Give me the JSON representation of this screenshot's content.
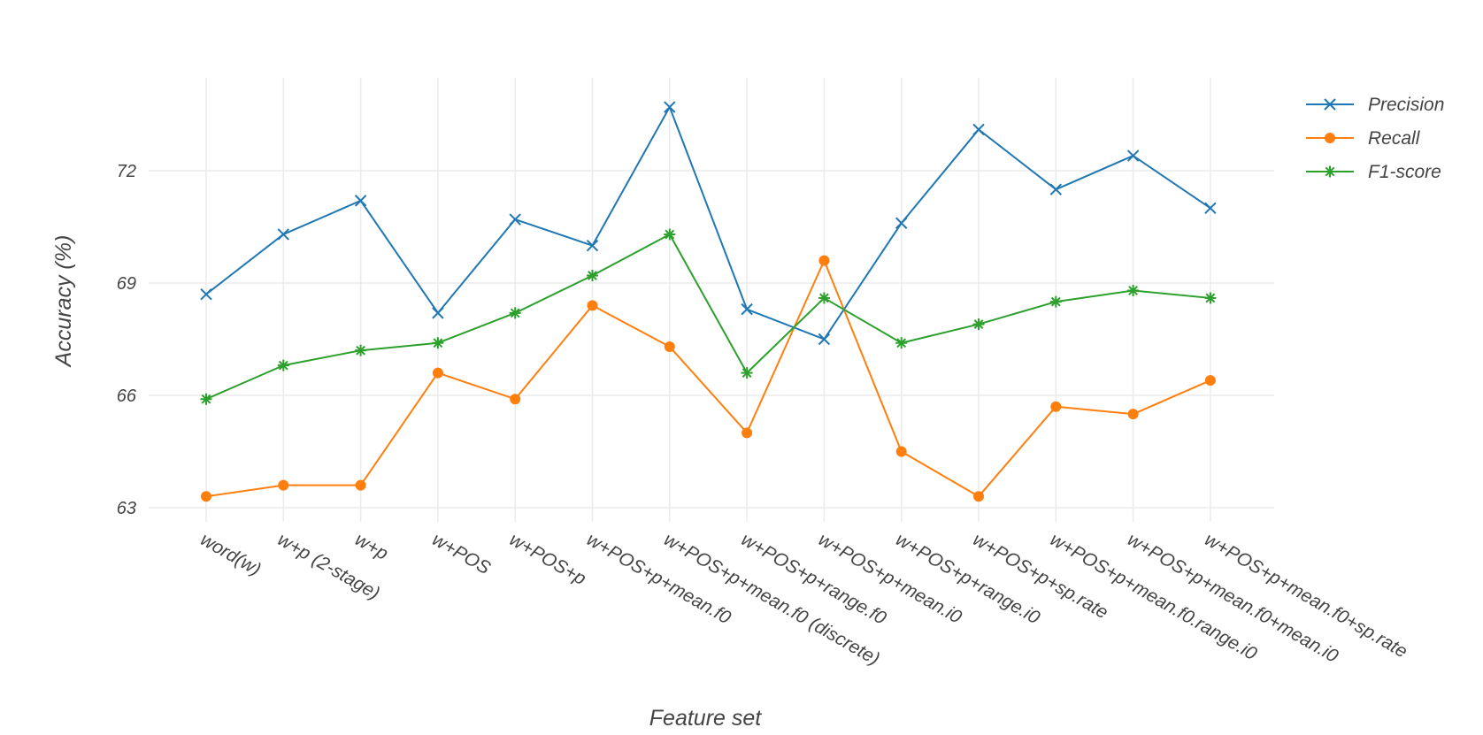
{
  "chart_data": {
    "type": "line",
    "xlabel": "Feature set",
    "ylabel": "Accuracy (%)",
    "ylim": [
      62.5,
      74.5
    ],
    "yticks": [
      63,
      66,
      69,
      72
    ],
    "grid": true,
    "legend_position": "top-right",
    "categories": [
      "word(w)",
      "w+p (2-stage)",
      "w+p",
      "w+POS",
      "w+POS+p",
      "w+POS+p+mean.f0",
      "w+POS+p+mean.f0 (discrete)",
      "w+POS+p+range.f0",
      "w+POS+p+mean.i0",
      "w+POS+p+range.i0",
      "w+POS+p+sp.rate",
      "w+POS+p+mean.f0.range.i0",
      "w+POS+p+mean.f0+mean.i0",
      "w+POS+p+mean.f0+sp.rate"
    ],
    "series": [
      {
        "name": "Precision",
        "color": "#1f77b4",
        "marker": "x",
        "values": [
          68.7,
          70.3,
          71.2,
          68.2,
          70.7,
          70.0,
          73.7,
          68.3,
          67.5,
          70.6,
          73.1,
          71.5,
          72.4,
          71.0
        ]
      },
      {
        "name": "Recall",
        "color": "#ff7f0e",
        "marker": "circle",
        "values": [
          63.3,
          63.6,
          63.6,
          66.6,
          65.9,
          68.4,
          67.3,
          65.0,
          69.6,
          64.5,
          63.3,
          65.7,
          65.5,
          66.4
        ]
      },
      {
        "name": "F1-score",
        "color": "#2ca02c",
        "marker": "asterisk",
        "values": [
          65.9,
          66.8,
          67.2,
          67.4,
          68.2,
          69.2,
          70.3,
          66.6,
          68.6,
          67.4,
          67.9,
          68.5,
          68.8,
          68.6
        ]
      }
    ]
  }
}
